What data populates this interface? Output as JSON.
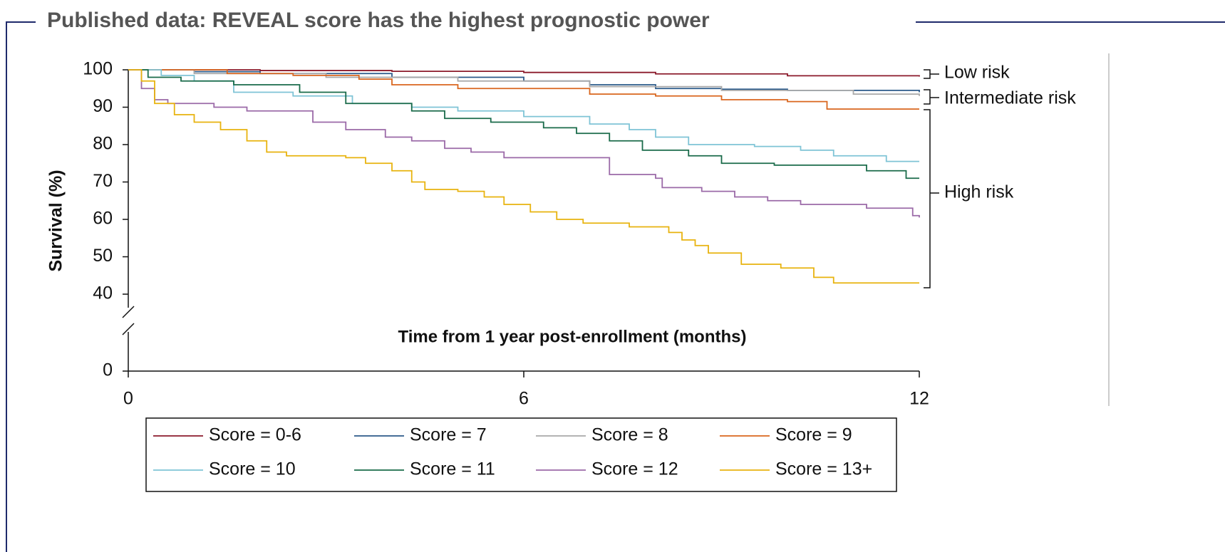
{
  "title": "Published data: REVEAL score has the highest prognostic power",
  "chart_data": {
    "type": "step",
    "ylabel": "Survival (%)",
    "xlabel": "Time from 1 year post-enrollment (months)",
    "xlim": [
      0,
      12
    ],
    "xticks": [
      0,
      6,
      12
    ],
    "ylim": [
      0,
      100
    ],
    "yticks": [
      0,
      40,
      50,
      60,
      70,
      80,
      90,
      100
    ],
    "ybreak": [
      0,
      40
    ],
    "annotations": [
      "Low risk",
      "Intermediate risk",
      "High risk"
    ],
    "series": [
      {
        "name": "Score = 0-6",
        "color": "#8b1a2b",
        "x": [
          0,
          2,
          4,
          6,
          8,
          10,
          12
        ],
        "values": [
          100,
          99.8,
          99.6,
          99.3,
          98.9,
          98.4,
          98.2
        ]
      },
      {
        "name": "Score = 7",
        "color": "#2b5a8a",
        "x": [
          0,
          1,
          2,
          4,
          6,
          7,
          8,
          9,
          10,
          12
        ],
        "values": [
          100,
          99.5,
          99,
          98,
          97,
          96,
          95,
          94.8,
          94.5,
          94
        ]
      },
      {
        "name": "Score = 8",
        "color": "#a8a8a8",
        "x": [
          0,
          1,
          3,
          5,
          7,
          9,
          11,
          12
        ],
        "values": [
          100,
          99,
          98,
          97,
          95.5,
          94.5,
          93.5,
          93
        ]
      },
      {
        "name": "Score = 9",
        "color": "#d9661e",
        "x": [
          0,
          1.5,
          2.5,
          3.5,
          4,
          5,
          6,
          7,
          8,
          9,
          10,
          10.6,
          12
        ],
        "values": [
          100,
          99,
          98.5,
          97.5,
          96,
          95,
          95,
          93.5,
          93,
          92,
          91.5,
          89.5,
          89.5
        ]
      },
      {
        "name": "Score = 10",
        "color": "#7fc4d6",
        "x": [
          0,
          0.5,
          1,
          1.6,
          2.5,
          3.4,
          4.3,
          5,
          6,
          7,
          7.6,
          8,
          8.5,
          9.5,
          10.2,
          10.7,
          11.5,
          12
        ],
        "values": [
          100,
          98.5,
          97,
          94,
          93,
          91,
          90,
          89,
          87.5,
          85.5,
          84,
          82,
          80,
          79.5,
          78.5,
          77,
          75.5,
          75.5
        ]
      },
      {
        "name": "Score = 11",
        "color": "#1a6b4a",
        "x": [
          0,
          0.3,
          0.8,
          1.6,
          2.6,
          3.3,
          4.3,
          4.8,
          5.5,
          6.3,
          6.8,
          7.3,
          7.8,
          8.5,
          9,
          9.8,
          11.2,
          11.8,
          12
        ],
        "values": [
          100,
          98,
          97,
          96,
          94,
          91,
          89,
          87,
          86,
          84.5,
          83,
          81,
          78.5,
          77,
          75,
          74.5,
          73,
          71,
          71
        ]
      },
      {
        "name": "Score = 12",
        "color": "#9b6aa8",
        "x": [
          0,
          0.2,
          0.4,
          0.6,
          1.3,
          1.8,
          2.8,
          3.3,
          3.9,
          4.3,
          4.8,
          5.2,
          5.7,
          7,
          7.3,
          8,
          8.1,
          8.7,
          9.2,
          9.7,
          10.2,
          11.2,
          11.9,
          12
        ],
        "values": [
          100,
          95,
          92,
          91,
          90,
          89,
          86,
          84,
          82,
          81,
          79,
          78,
          76.5,
          76.5,
          72,
          71,
          68.5,
          67.5,
          66,
          65,
          64,
          63,
          61,
          60.5
        ]
      },
      {
        "name": "Score = 13+",
        "color": "#e8b30f",
        "x": [
          0,
          0.2,
          0.4,
          0.7,
          1,
          1.4,
          1.8,
          2.1,
          2.4,
          3.3,
          3.6,
          4,
          4.3,
          4.5,
          5,
          5.4,
          5.7,
          6.1,
          6.5,
          6.9,
          7.6,
          8.2,
          8.4,
          8.6,
          8.8,
          9.3,
          9.9,
          10.4,
          10.7,
          12
        ],
        "values": [
          100,
          97,
          91,
          88,
          86,
          84,
          81,
          78,
          77,
          76.5,
          75,
          73,
          70,
          68,
          67.5,
          66,
          64,
          62,
          60,
          59,
          58,
          56.5,
          54.5,
          53,
          51,
          48,
          47,
          44.5,
          43,
          43
        ]
      }
    ]
  }
}
